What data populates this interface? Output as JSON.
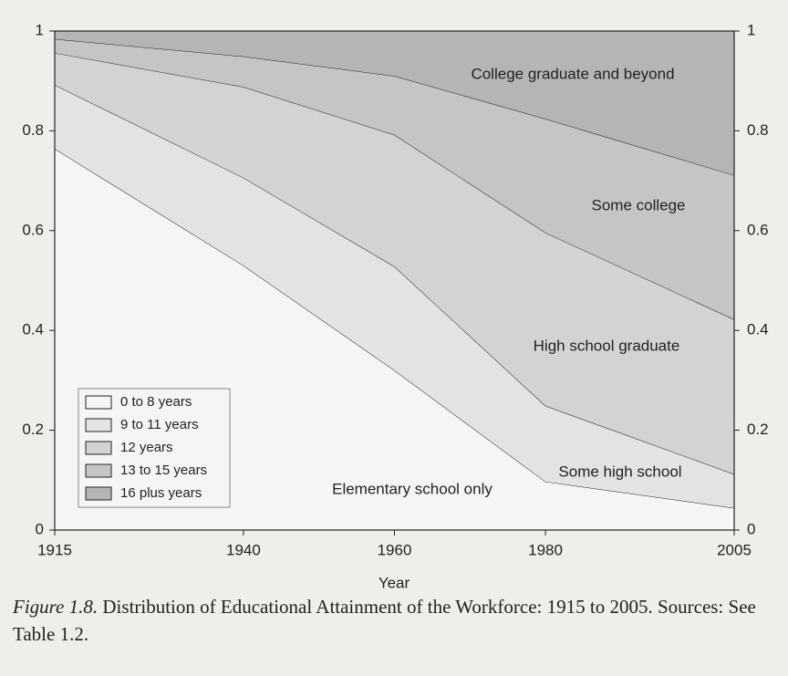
{
  "chart_data": {
    "type": "stacked_area",
    "x": [
      1915,
      1940,
      1960,
      1980,
      2005
    ],
    "xlim": [
      1915,
      2005
    ],
    "xticks": [
      1915,
      1940,
      1960,
      1980,
      2005
    ],
    "ylim": [
      0,
      1
    ],
    "yticks": [
      0,
      0.2,
      0.4,
      0.6,
      0.8,
      1
    ],
    "y2lim": [
      0,
      1
    ],
    "y2ticks": [
      0,
      0.2,
      0.4,
      0.6,
      0.8,
      1
    ],
    "xlabel": "Year",
    "series": [
      {
        "name": "0 to 8 years",
        "color": "#f5f5f3",
        "values": [
          0.764,
          0.53,
          0.32,
          0.097,
          0.044
        ]
      },
      {
        "name": "9 to 11 years",
        "color": "#e3e3e1",
        "values": [
          0.128,
          0.176,
          0.208,
          0.152,
          0.068
        ]
      },
      {
        "name": "12 years",
        "color": "#d3d3d1",
        "values": [
          0.064,
          0.182,
          0.264,
          0.347,
          0.31
        ]
      },
      {
        "name": "13 to 15 years",
        "color": "#c5c5c3",
        "values": [
          0.028,
          0.061,
          0.118,
          0.228,
          0.289
        ]
      },
      {
        "name": "16 plus years",
        "color": "#b5b5b3",
        "values": [
          0.016,
          0.051,
          0.09,
          0.176,
          0.289
        ]
      }
    ],
    "annotations": [
      "Elementary school only",
      "Some high school",
      "High school graduate",
      "Some college",
      "College graduate and beyond"
    ],
    "legend": "lower left",
    "caption": {
      "label": "Figure 1.8.",
      "text": "Distribution of Educational Attainment of the Workforce: 1915 to 2005. Sources: See Table 1.2."
    }
  }
}
